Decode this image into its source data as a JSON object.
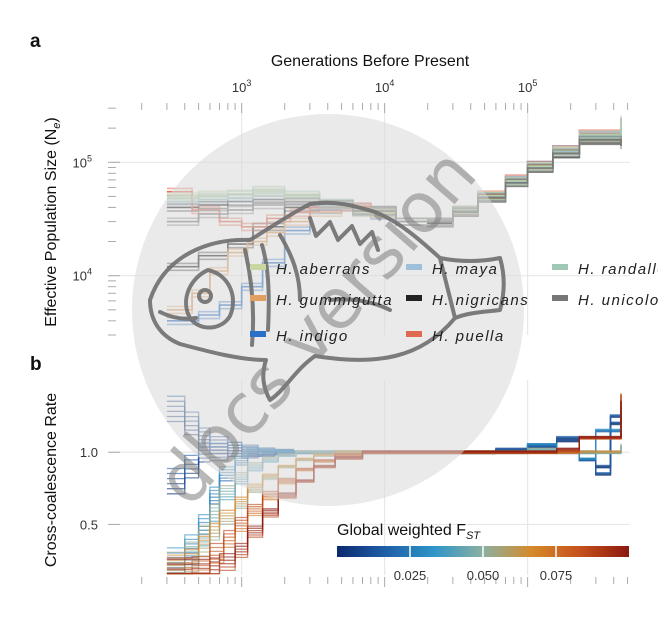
{
  "chart_data": [
    {
      "panel": "a",
      "type": "line",
      "step": true,
      "xlabel": "Generations Before Present",
      "ylabel": "Effective Population Size (N",
      "ylabel_sub": "e",
      "ylabel_close": ")",
      "x_scale": "log",
      "y_scale": "log",
      "xlim": [
        120,
        520000
      ],
      "ylim": [
        3000,
        320000
      ],
      "x_ticks": [
        {
          "value": 1000,
          "base": "10",
          "exp": "3"
        },
        {
          "value": 10000,
          "base": "10",
          "exp": "4"
        },
        {
          "value": 100000,
          "base": "10",
          "exp": "5"
        }
      ],
      "y_ticks": [
        {
          "value": 100000,
          "base": "10",
          "exp": "5"
        },
        {
          "value": 10000,
          "base": "10",
          "exp": "4"
        }
      ],
      "grid": true,
      "legend_position": "bottom-right",
      "legend": [
        {
          "name": "H. aberrans",
          "color": "#c8d6a0"
        },
        {
          "name": "H. gummigutta",
          "color": "#e0a060"
        },
        {
          "name": "H. indigo",
          "color": "#2a70c8"
        },
        {
          "name": "H. maya",
          "color": "#9fc0d8"
        },
        {
          "name": "H. nigricans",
          "color": "#222222"
        },
        {
          "name": "H. puella",
          "color": "#e06a50"
        },
        {
          "name": "H. randallorum",
          "color": "#9fc8b4"
        },
        {
          "name": "H. unicolor",
          "color": "#777777"
        }
      ],
      "series": [
        {
          "color": "#222222",
          "x": [
            300,
            500,
            800,
            1200,
            2000,
            3500,
            6000,
            12000,
            20000,
            30000,
            45000,
            70000,
            100000,
            150000,
            230000,
            450000
          ],
          "y": [
            40000,
            42000,
            45000,
            47000,
            48000,
            42000,
            37000,
            30000,
            30000,
            38000,
            50000,
            68000,
            90000,
            120000,
            155000,
            150000
          ]
        },
        {
          "color": "#222222",
          "x": [
            300,
            500,
            800,
            1200,
            2000,
            3500,
            6000,
            12000,
            20000,
            30000,
            45000,
            70000,
            100000,
            150000,
            230000,
            450000
          ],
          "y": [
            12000,
            15000,
            19000,
            27000,
            40000,
            43000,
            38000,
            30000,
            29000,
            36000,
            48000,
            66000,
            88000,
            118000,
            160000,
            170000
          ]
        },
        {
          "color": "#2a70c8",
          "x": [
            300,
            500,
            700,
            1000,
            1400,
            2000,
            3000,
            5000,
            8000,
            12000,
            20000,
            30000,
            45000,
            70000,
            100000,
            150000,
            230000,
            450000
          ],
          "y": [
            4000,
            4500,
            5500,
            8000,
            13000,
            25000,
            38000,
            40000,
            34000,
            30000,
            30000,
            38000,
            50000,
            70000,
            95000,
            130000,
            175000,
            190000
          ]
        },
        {
          "color": "#e0a060",
          "x": [
            300,
            450,
            600,
            800,
            1100,
            1500,
            2000,
            3000,
            5000,
            8000,
            12000,
            20000,
            30000,
            45000,
            70000,
            100000,
            150000,
            230000,
            450000
          ],
          "y": [
            5000,
            7000,
            11000,
            16000,
            20000,
            24000,
            30000,
            36000,
            40000,
            35000,
            30000,
            30000,
            37000,
            50000,
            68000,
            90000,
            125000,
            165000,
            210000
          ]
        },
        {
          "color": "#e06a50",
          "x": [
            300,
            450,
            700,
            1000,
            1500,
            2200,
            3000,
            5000,
            8000,
            12000,
            20000,
            30000,
            45000,
            70000,
            100000,
            150000,
            230000,
            450000
          ],
          "y": [
            55000,
            38000,
            30000,
            27000,
            32000,
            36000,
            40000,
            41000,
            36000,
            30000,
            30000,
            38000,
            52000,
            72000,
            95000,
            130000,
            180000,
            230000
          ]
        },
        {
          "color": "#9fc0d8",
          "x": [
            300,
            500,
            800,
            1200,
            2000,
            3500,
            6000,
            12000,
            20000,
            30000,
            45000,
            70000,
            100000,
            150000,
            230000,
            450000
          ],
          "y": [
            45000,
            47000,
            48000,
            50000,
            48000,
            42000,
            36000,
            30000,
            30000,
            38000,
            50000,
            68000,
            92000,
            125000,
            170000,
            240000
          ]
        },
        {
          "color": "#c8d6a0",
          "x": [
            300,
            500,
            800,
            1200,
            2000,
            3500,
            6000,
            12000,
            20000,
            30000,
            45000,
            70000,
            100000,
            150000,
            230000,
            450000
          ],
          "y": [
            50000,
            52000,
            53000,
            55000,
            50000,
            43000,
            36000,
            30000,
            30000,
            38000,
            51000,
            69000,
            93000,
            128000,
            175000,
            220000
          ]
        },
        {
          "color": "#9fc8b4",
          "x": [
            300,
            500,
            800,
            1200,
            2000,
            3500,
            6000,
            12000,
            20000,
            30000,
            45000,
            70000,
            100000,
            150000,
            230000,
            450000
          ],
          "y": [
            48000,
            50000,
            52000,
            57000,
            52000,
            44000,
            37000,
            30000,
            30000,
            38000,
            50000,
            67000,
            90000,
            122000,
            165000,
            200000
          ]
        },
        {
          "color": "#777777",
          "x": [
            300,
            500,
            800,
            1200,
            2000,
            3500,
            6000,
            12000,
            20000,
            30000,
            45000,
            70000,
            100000,
            150000,
            230000,
            450000
          ],
          "y": [
            30000,
            35000,
            38000,
            42000,
            45000,
            43000,
            37000,
            30000,
            30000,
            37000,
            49000,
            66000,
            89000,
            120000,
            158000,
            140000
          ]
        }
      ]
    },
    {
      "panel": "b",
      "type": "line",
      "step": true,
      "xlabel": "",
      "ylabel": "Cross-coalescence Rate",
      "x_scale": "log",
      "xlim": [
        120,
        520000
      ],
      "ylim": [
        0.15,
        1.5
      ],
      "y_ticks": [
        0.5,
        1.0
      ],
      "y_tick_labels": [
        "0.5",
        "1.0"
      ],
      "grid": true,
      "colorbar": {
        "title": "Global weighted F",
        "title_sub": "ST",
        "range": [
          0.0,
          0.1
        ],
        "ticks": [
          0.025,
          0.05,
          0.075
        ],
        "tick_labels": [
          "0.025",
          "0.050",
          "0.075"
        ],
        "colors": [
          "#0b2a6e",
          "#1f5fa8",
          "#2e95c8",
          "#8bb0a0",
          "#d58a2a",
          "#c5501c",
          "#8b1810"
        ],
        "position": "bottom-right"
      },
      "series": [
        {
          "fst": 0.005,
          "x": [
            300,
            400,
            500,
            600,
            800,
            1000,
            1300,
            1700,
            2300,
            3000,
            5000,
            10000,
            30000,
            60000,
            100000,
            160000,
            230000,
            300000,
            380000,
            450000
          ],
          "y": [
            1.3,
            1.2,
            1.1,
            1.05,
            1.02,
            1.01,
            1.0,
            1.0,
            1.0,
            1.0,
            1.0,
            1.0,
            1.0,
            1.02,
            1.05,
            1.08,
            1.0,
            0.9,
            1.2,
            1.3
          ]
        },
        {
          "fst": 0.01,
          "x": [
            300,
            400,
            500,
            600,
            800,
            1000,
            1300,
            1700,
            2300,
            3000,
            5000,
            10000,
            30000,
            60000,
            100000,
            160000,
            230000,
            300000,
            380000,
            450000
          ],
          "y": [
            0.8,
            0.9,
            1.0,
            1.0,
            1.02,
            1.0,
            1.0,
            1.0,
            1.0,
            1.0,
            1.0,
            1.0,
            1.0,
            1.01,
            1.04,
            1.1,
            0.95,
            0.85,
            1.25,
            1.2
          ]
        },
        {
          "fst": 0.025,
          "x": [
            300,
            400,
            500,
            600,
            700,
            900,
            1100,
            1400,
            1800,
            2400,
            3200,
            5000,
            10000,
            30000,
            60000,
            100000,
            160000,
            230000,
            300000,
            450000
          ],
          "y": [
            0.25,
            0.35,
            0.5,
            0.7,
            0.85,
            0.95,
            1.0,
            1.0,
            1.0,
            1.0,
            1.0,
            1.0,
            1.0,
            1.0,
            1.0,
            1.05,
            1.0,
            0.95,
            1.15,
            1.1
          ]
        },
        {
          "fst": 0.045,
          "x": [
            300,
            400,
            500,
            600,
            700,
            900,
            1100,
            1400,
            1800,
            2400,
            3200,
            4500,
            7000,
            12000,
            30000,
            60000,
            100000,
            160000,
            230000,
            450000
          ],
          "y": [
            0.22,
            0.3,
            0.42,
            0.58,
            0.72,
            0.82,
            0.9,
            0.95,
            0.98,
            1.0,
            1.0,
            1.0,
            1.0,
            1.0,
            1.0,
            1.0,
            1.02,
            1.0,
            1.0,
            1.05
          ]
        },
        {
          "fst": 0.06,
          "x": [
            300,
            400,
            500,
            600,
            700,
            900,
            1100,
            1400,
            1800,
            2400,
            3200,
            4500,
            7000,
            12000,
            30000,
            60000,
            100000,
            160000,
            230000,
            450000
          ],
          "y": [
            0.2,
            0.25,
            0.35,
            0.45,
            0.55,
            0.65,
            0.75,
            0.83,
            0.9,
            0.95,
            0.98,
            1.0,
            1.0,
            1.0,
            1.0,
            1.0,
            1.0,
            1.0,
            1.0,
            1.0
          ]
        },
        {
          "fst": 0.08,
          "x": [
            300,
            450,
            600,
            750,
            900,
            1100,
            1400,
            1800,
            2400,
            3200,
            4500,
            7000,
            12000,
            30000,
            60000,
            100000,
            160000,
            230000,
            450000
          ],
          "y": [
            0.18,
            0.2,
            0.3,
            0.4,
            0.5,
            0.6,
            0.7,
            0.8,
            0.88,
            0.94,
            0.98,
            1.0,
            1.0,
            1.0,
            1.0,
            1.0,
            1.0,
            1.1,
            1.4
          ]
        },
        {
          "fst": 0.095,
          "x": [
            300,
            450,
            600,
            700,
            900,
            1100,
            1400,
            1800,
            2400,
            3200,
            4500,
            7000,
            12000,
            30000,
            60000,
            100000,
            160000,
            230000,
            450000
          ],
          "y": [
            0.17,
            0.18,
            0.2,
            0.24,
            0.32,
            0.45,
            0.58,
            0.7,
            0.8,
            0.9,
            0.96,
            1.0,
            1.0,
            1.0,
            1.0,
            1.0,
            1.02,
            1.1,
            1.35
          ]
        }
      ]
    }
  ],
  "watermark": {
    "text": "dbcs version"
  }
}
